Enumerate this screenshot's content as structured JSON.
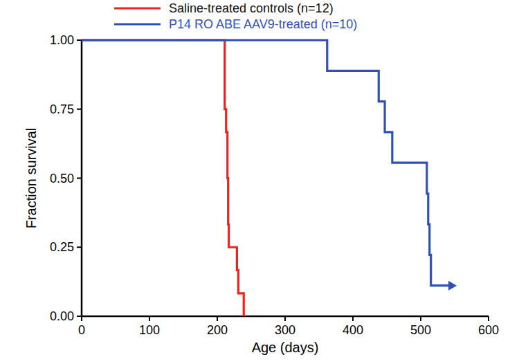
{
  "chart_data": {
    "type": "line",
    "x_label": "Age (days)",
    "y_label": "Fraction survival",
    "xlim": [
      0,
      600
    ],
    "xticks": [
      0,
      100,
      200,
      300,
      400,
      500,
      600
    ],
    "ylim": [
      0,
      1
    ],
    "yticks": [
      {
        "value": 0,
        "label": "0.00"
      },
      {
        "value": 0.25,
        "label": "0.25"
      },
      {
        "value": 0.5,
        "label": "0.50"
      },
      {
        "value": 0.75,
        "label": "0.75"
      },
      {
        "value": 1,
        "label": "1.00"
      }
    ],
    "grid": false,
    "legend": "top",
    "line_style": "step",
    "series": [
      {
        "name": "Saline-treated controls (n=12)",
        "color": "#e8261f",
        "x": [
          0,
          211,
          213,
          215,
          216,
          217,
          229,
          231,
          239
        ],
        "values": [
          1,
          0.75,
          0.667,
          0.5,
          0.333,
          0.25,
          0.167,
          0.083,
          0
        ]
      },
      {
        "name": "P14 RO ABE AAV9-treated (n=10)",
        "color": "#3050b8",
        "marker": "arrow",
        "x": [
          0,
          362,
          438,
          447,
          458,
          509,
          511,
          513,
          515,
          550
        ],
        "values": [
          1,
          0.889,
          0.778,
          0.667,
          0.556,
          0.444,
          0.333,
          0.222,
          0.111,
          0.111
        ]
      }
    ]
  }
}
